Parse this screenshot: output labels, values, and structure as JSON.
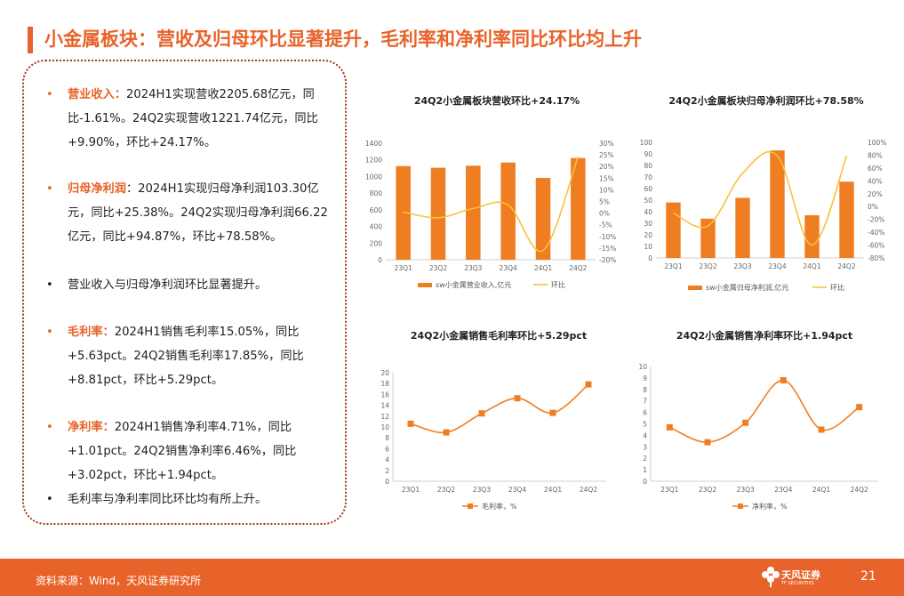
{
  "page": {
    "title": "小金属板块：营收及归母环比显著提升，毛利率和净利率同比环比均上升",
    "source": "资料来源：Wind，天风证券研究所",
    "page_number": "21",
    "logo_cn": "天风证券",
    "logo_en": "TF SECURITIES"
  },
  "bullets": [
    {
      "key": "营业收入：",
      "text": "2024H1实现营收2205.68亿元，同比-1.61%。24Q2实现营收1221.74亿元，同比+9.90%，环比+24.17%。"
    },
    {
      "key": "归母净利润",
      "text": "：2024H1实现归母净利润103.30亿元，同比+25.38%。24Q2实现归母净利润66.22亿元，同比+94.87%，环比+78.58%。"
    },
    {
      "key": "",
      "text": "营业收入与归母净利润环比显著提升。"
    },
    {
      "key": "毛利率：",
      "text": "2024H1销售毛利率15.05%，同比+5.63pct。24Q2销售毛利率17.85%，同比+8.81pct，环比+5.29pct。"
    },
    {
      "key": "净利率：",
      "text": "2024H1销售净利率4.71%，同比+1.01pct。24Q2销售净利率6.46%，同比+3.02pct，环比+1.94pct。"
    },
    {
      "key": "",
      "text": "毛利率与净利率同比环比均有所上升。"
    }
  ],
  "colors": {
    "accent": "#e8632a",
    "bar": "#ef7d22",
    "line": "#f8c23a",
    "border": "#a23a1f"
  },
  "chart_data": [
    {
      "type": "bar",
      "title": "24Q2小金属板块营收环比+24.17%",
      "categories": [
        "23Q1",
        "23Q2",
        "23Q3",
        "23Q4",
        "24Q1",
        "24Q2"
      ],
      "series": [
        {
          "name": "sw小金属营业收入,亿元",
          "type": "bar",
          "axis": "left",
          "values": [
            1125,
            1105,
            1130,
            1168,
            983,
            1222
          ]
        },
        {
          "name": "环比",
          "type": "line",
          "axis": "right",
          "values": [
            0.5,
            -2.0,
            2.0,
            3.5,
            -16.0,
            24.2
          ]
        }
      ],
      "ylim_left": [
        0,
        1400
      ],
      "yticks_left": [
        "0",
        "200",
        "400",
        "600",
        "800",
        "1000",
        "1200",
        "1400"
      ],
      "ylim_right": [
        -20,
        30
      ],
      "yticks_right": [
        "-20%",
        "-15%",
        "-10%",
        "-5%",
        "0%",
        "5%",
        "10%",
        "15%",
        "20%",
        "25%",
        "30%"
      ],
      "legend": "bottom"
    },
    {
      "type": "bar",
      "title": "24Q2小金属板块归母净利润环比+78.58%",
      "categories": [
        "23Q1",
        "23Q2",
        "23Q3",
        "23Q4",
        "24Q1",
        "24Q2"
      ],
      "series": [
        {
          "name": "sw小金属归母净利润,亿元",
          "type": "bar",
          "axis": "left",
          "values": [
            48,
            34,
            52,
            93,
            37,
            66
          ]
        },
        {
          "name": "环比",
          "type": "line",
          "axis": "right",
          "values": [
            -10,
            -30,
            52,
            79,
            -60,
            79
          ]
        }
      ],
      "ylim_left": [
        0,
        100
      ],
      "yticks_left": [
        "0",
        "10",
        "20",
        "30",
        "40",
        "50",
        "60",
        "70",
        "80",
        "90",
        "100"
      ],
      "ylim_right": [
        -80,
        100
      ],
      "yticks_right": [
        "-80%",
        "-60%",
        "-40%",
        "-20%",
        "0%",
        "20%",
        "40%",
        "60%",
        "80%",
        "100%"
      ],
      "legend": "bottom"
    },
    {
      "type": "line",
      "title": "24Q2小金属销售毛利率环比+5.29pct",
      "categories": [
        "23Q1",
        "23Q2",
        "23Q3",
        "23Q4",
        "24Q1",
        "24Q2"
      ],
      "series": [
        {
          "name": "毛利率，%",
          "values": [
            10.6,
            9.0,
            12.5,
            15.3,
            12.6,
            17.85
          ]
        }
      ],
      "ylim": [
        0,
        20
      ],
      "yticks": [
        "0",
        "2",
        "4",
        "6",
        "8",
        "10",
        "12",
        "14",
        "16",
        "18",
        "20"
      ],
      "legend": "bottom"
    },
    {
      "type": "line",
      "title": "24Q2小金属销售净利率环比+1.94pct",
      "categories": [
        "23Q1",
        "23Q2",
        "23Q3",
        "23Q4",
        "24Q1",
        "24Q2"
      ],
      "series": [
        {
          "name": "净利率，%",
          "values": [
            4.7,
            3.4,
            5.1,
            8.8,
            4.5,
            6.46
          ]
        }
      ],
      "ylim": [
        0,
        10
      ],
      "yticks": [
        "0",
        "1",
        "2",
        "3",
        "4",
        "5",
        "6",
        "7",
        "8",
        "9",
        "10"
      ],
      "legend": "bottom"
    }
  ]
}
